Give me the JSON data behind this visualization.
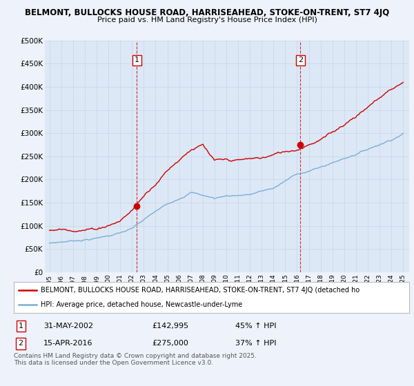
{
  "title1": "BELMONT, BULLOCKS HOUSE ROAD, HARRISEAHEAD, STOKE-ON-TRENT, ST7 4JQ",
  "title2": "Price paid vs. HM Land Registry's House Price Index (HPI)",
  "ylabel_ticks": [
    "£0",
    "£50K",
    "£100K",
    "£150K",
    "£200K",
    "£250K",
    "£300K",
    "£350K",
    "£400K",
    "£450K",
    "£500K"
  ],
  "ytick_values": [
    0,
    50000,
    100000,
    150000,
    200000,
    250000,
    300000,
    350000,
    400000,
    450000,
    500000
  ],
  "xlim": [
    1994.6,
    2025.5
  ],
  "ylim": [
    0,
    500000
  ],
  "marker1_x": 2002.42,
  "marker1_y": 142995,
  "marker2_x": 2016.29,
  "marker2_y": 275000,
  "line1_color": "#cc0000",
  "line2_color": "#7bafd4",
  "plot_bg_color": "#dce8f5",
  "background_color": "#eef2fa",
  "legend1_text": "BELMONT, BULLOCKS HOUSE ROAD, HARRISEAHEAD, STOKE-ON-TRENT, ST7 4JQ (detached ho",
  "legend2_text": "HPI: Average price, detached house, Newcastle-under-Lyme",
  "marker1_date": "31-MAY-2002",
  "marker1_price": "£142,995",
  "marker1_hpi": "45% ↑ HPI",
  "marker2_date": "15-APR-2016",
  "marker2_price": "£275,000",
  "marker2_hpi": "37% ↑ HPI",
  "footer": "Contains HM Land Registry data © Crown copyright and database right 2025.\nThis data is licensed under the Open Government Licence v3.0.",
  "xtick_years": [
    1995,
    1996,
    1997,
    1998,
    1999,
    2000,
    2001,
    2002,
    2003,
    2004,
    2005,
    2006,
    2007,
    2008,
    2009,
    2010,
    2011,
    2012,
    2013,
    2014,
    2015,
    2016,
    2017,
    2018,
    2019,
    2020,
    2021,
    2022,
    2023,
    2024,
    2025
  ]
}
